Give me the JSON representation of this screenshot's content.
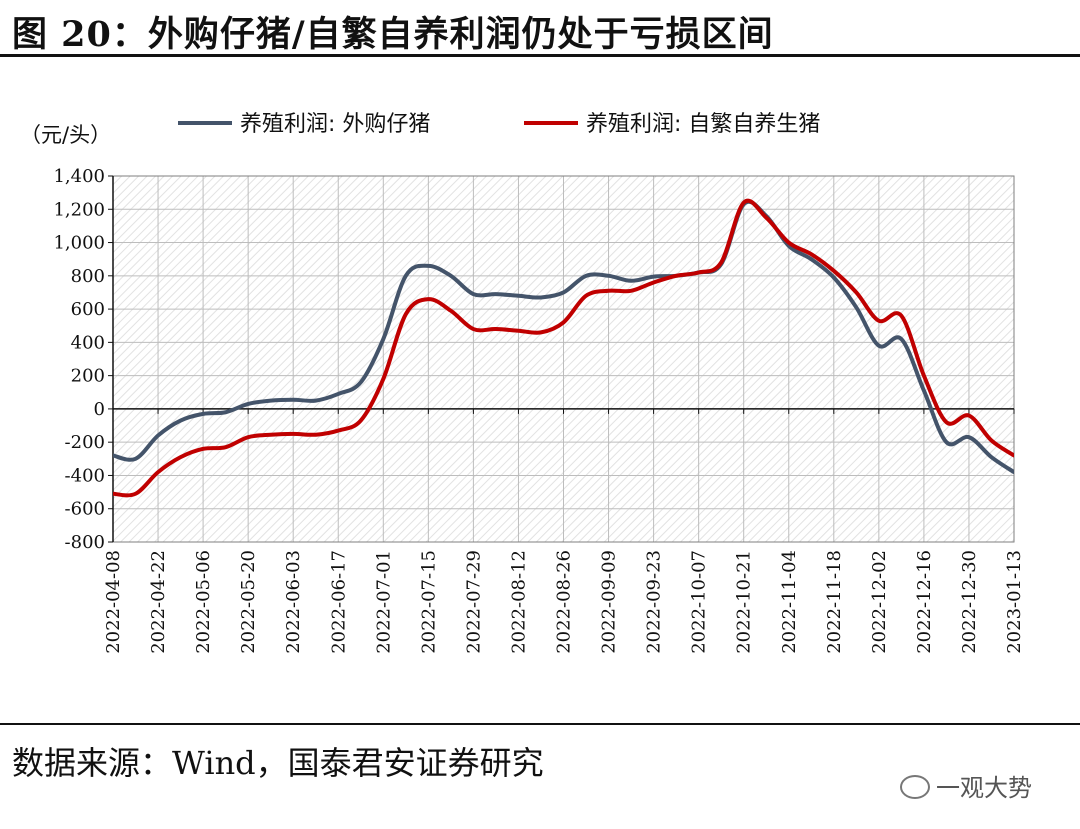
{
  "figure": {
    "title": "图 20：外购仔猪/自繁自养利润仍处于亏损区间",
    "source": "数据来源：Wind，国泰君安证券研究",
    "watermark": "一观大势"
  },
  "chart_data": {
    "type": "line",
    "title": "",
    "unit_label": "（元/头）",
    "xlabel": "",
    "ylabel": "",
    "ylim": [
      -800,
      1400
    ],
    "yticks": [
      -800,
      -600,
      -400,
      -200,
      0,
      200,
      400,
      600,
      800,
      1000,
      1200,
      1400
    ],
    "ytick_labels": [
      "-800",
      "-600",
      "-400",
      "-200",
      "0",
      "200",
      "400",
      "600",
      "800",
      "1,000",
      "1,200",
      "1,400"
    ],
    "xticks": [
      "2022-04-08",
      "2022-04-22",
      "2022-05-06",
      "2022-05-20",
      "2022-06-03",
      "2022-06-17",
      "2022-07-01",
      "2022-07-15",
      "2022-07-29",
      "2022-08-12",
      "2022-08-26",
      "2022-09-09",
      "2022-09-23",
      "2022-10-07",
      "2022-10-21",
      "2022-11-04",
      "2022-11-18",
      "2022-12-02",
      "2022-12-16",
      "2022-12-30",
      "2023-01-13"
    ],
    "grid": true,
    "hatched_background": true,
    "legend_position": "top",
    "x": [
      "2022-04-08",
      "2022-04-15",
      "2022-04-22",
      "2022-04-29",
      "2022-05-06",
      "2022-05-13",
      "2022-05-20",
      "2022-05-27",
      "2022-06-03",
      "2022-06-10",
      "2022-06-17",
      "2022-06-24",
      "2022-07-01",
      "2022-07-08",
      "2022-07-15",
      "2022-07-22",
      "2022-07-29",
      "2022-08-05",
      "2022-08-12",
      "2022-08-19",
      "2022-08-26",
      "2022-09-02",
      "2022-09-09",
      "2022-09-16",
      "2022-09-23",
      "2022-09-30",
      "2022-10-07",
      "2022-10-14",
      "2022-10-21",
      "2022-10-28",
      "2022-11-04",
      "2022-11-11",
      "2022-11-18",
      "2022-11-25",
      "2022-12-02",
      "2022-12-09",
      "2022-12-16",
      "2022-12-23",
      "2022-12-30",
      "2023-01-06",
      "2023-01-13"
    ],
    "series": [
      {
        "name": "养殖利润: 外购仔猪",
        "color": "#44546a",
        "values": [
          -280,
          -300,
          -160,
          -70,
          -30,
          -20,
          30,
          50,
          55,
          50,
          90,
          160,
          420,
          800,
          860,
          800,
          690,
          690,
          680,
          670,
          700,
          800,
          800,
          770,
          795,
          800,
          820,
          870,
          1230,
          1160,
          980,
          900,
          790,
          610,
          380,
          420,
          110,
          -200,
          -170,
          -290,
          -380
        ]
      },
      {
        "name": "养殖利润: 自繁自养生猪",
        "color": "#c00000",
        "values": [
          -510,
          -510,
          -380,
          -290,
          -240,
          -230,
          -170,
          -155,
          -150,
          -155,
          -130,
          -70,
          180,
          570,
          660,
          590,
          480,
          480,
          470,
          460,
          520,
          680,
          710,
          710,
          760,
          800,
          820,
          880,
          1240,
          1150,
          1000,
          930,
          830,
          700,
          530,
          560,
          200,
          -80,
          -40,
          -190,
          -280
        ]
      }
    ]
  }
}
